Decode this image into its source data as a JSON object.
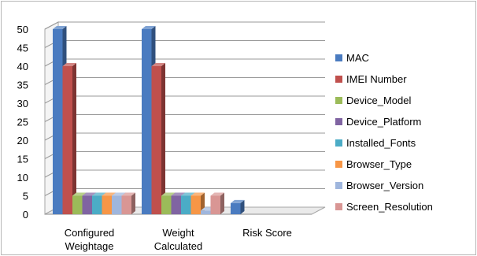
{
  "chart_data": {
    "type": "bar",
    "style": "3d-clustered-column",
    "title": "",
    "xlabel": "",
    "ylabel": "",
    "ylim": [
      0,
      50
    ],
    "y_ticks": [
      "0",
      "5",
      "10",
      "15",
      "20",
      "25",
      "30",
      "35",
      "40",
      "45",
      "50"
    ],
    "grid": true,
    "legend_position": "right",
    "categories": [
      [
        "Configured",
        "Weightage"
      ],
      [
        "Weight",
        "Calculated"
      ],
      [
        "Risk Score"
      ]
    ],
    "series": [
      {
        "name": "MAC",
        "color": "#4a7bc0",
        "values": [
          50,
          50,
          3
        ]
      },
      {
        "name": "IMEI Number",
        "color": "#c0504d",
        "values": [
          40,
          40,
          0
        ]
      },
      {
        "name": "Device_Model",
        "color": "#9bbb59",
        "values": [
          5,
          5,
          0
        ]
      },
      {
        "name": "Device_Platform",
        "color": "#8064a2",
        "values": [
          5,
          5,
          0
        ]
      },
      {
        "name": "Installed_Fonts",
        "color": "#4bacc6",
        "values": [
          5,
          5,
          0
        ]
      },
      {
        "name": "Browser_Type",
        "color": "#f79646",
        "values": [
          5,
          5,
          0
        ]
      },
      {
        "name": "Browser_Version",
        "color": "#9fb6dd",
        "values": [
          5,
          1,
          0
        ]
      },
      {
        "name": "Screen_Resolution",
        "color": "#d99694",
        "values": [
          5,
          5,
          0
        ]
      }
    ]
  }
}
